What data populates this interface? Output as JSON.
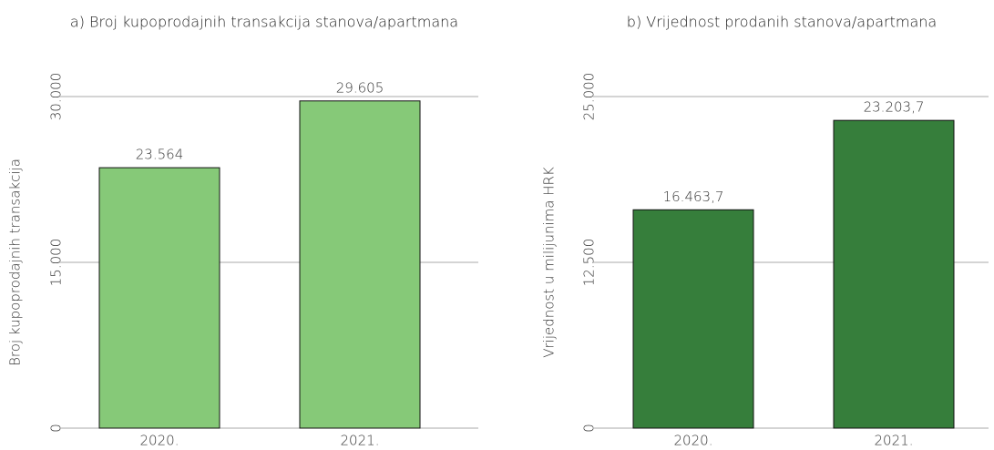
{
  "chart_data": [
    {
      "type": "bar",
      "title": "a) Broj kupoprodajnih transakcija stanova/apartmana",
      "y_label": "Broj kupoprodajnih transakcija",
      "categories": [
        "2020.",
        "2021."
      ],
      "values": [
        23564,
        29605
      ],
      "value_labels": [
        "23.564",
        "29.605"
      ],
      "color": "#86c978",
      "ylim": [
        0,
        30000
      ],
      "yticks": [
        {
          "value": 0,
          "label": "0"
        },
        {
          "value": 15000,
          "label": "15.000"
        },
        {
          "value": 30000,
          "label": "30.000"
        }
      ],
      "grid": true
    },
    {
      "type": "bar",
      "title": "b) Vrijednost prodanih stanova/apartmana",
      "y_label": "Vrijednost u milijunima HRK",
      "categories": [
        "2020.",
        "2021."
      ],
      "values": [
        16463.7,
        23203.7
      ],
      "value_labels": [
        "16.463,7",
        "23.203,7"
      ],
      "color": "#367e3b",
      "ylim": [
        0,
        25000
      ],
      "yticks": [
        {
          "value": 0,
          "label": "0"
        },
        {
          "value": 12500,
          "label": "12.500"
        },
        {
          "value": 25000,
          "label": "25.000"
        }
      ],
      "grid": true
    }
  ]
}
